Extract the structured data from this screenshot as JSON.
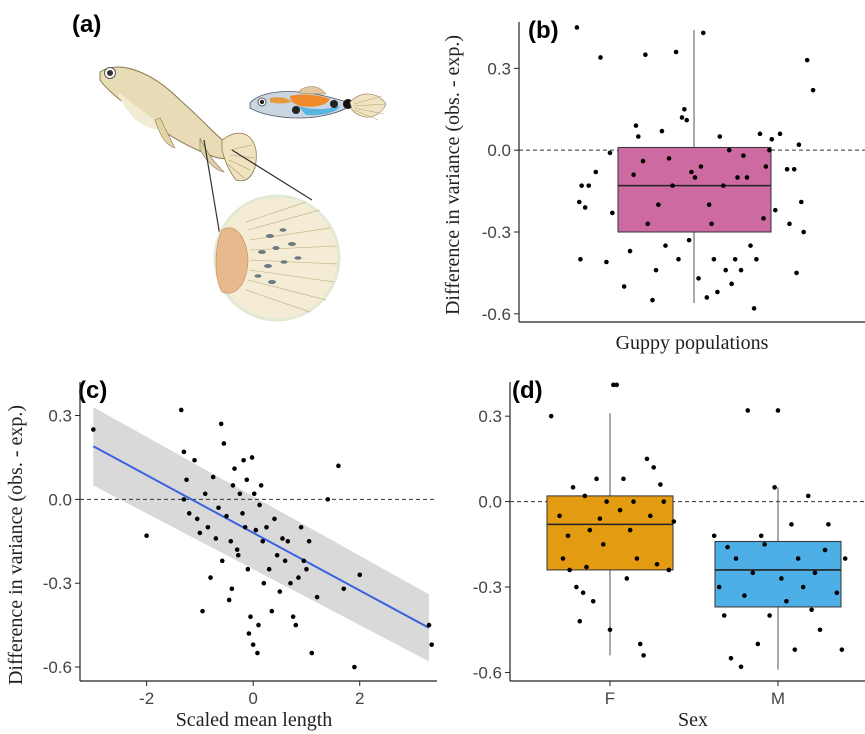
{
  "panel_labels": {
    "a": "(a)",
    "b": "(b)",
    "c": "(c)",
    "d": "(d)"
  },
  "illustration": {
    "subjects": [
      "female-guppy-icon",
      "male-guppy-icon",
      "tail-fin-parasite-icon"
    ]
  },
  "colors": {
    "box_b": "#cc6aa1",
    "box_F": "#e39b12",
    "box_M": "#4eaee6",
    "regression": "#3a62e0",
    "ci_band": "#d9d9d9"
  },
  "chart_data": [
    {
      "type": "box",
      "panel": "(b)",
      "xlabel": "Guppy populations",
      "ylabel": "Difference in variance (obs. - exp.)",
      "ylim": [
        -0.63,
        0.47
      ],
      "yticks": [
        -0.6,
        -0.3,
        0.0,
        0.3
      ],
      "ytick_labels": [
        "-0.6",
        "-0.3",
        "0.0",
        "0.3"
      ],
      "reference_line": 0.0,
      "grid": false,
      "box": {
        "min": -0.56,
        "q1": -0.3,
        "median": -0.13,
        "q3": 0.01,
        "max": 0.44
      },
      "points": [
        [
          -1.0,
          0.45
        ],
        [
          -0.8,
          0.34
        ],
        [
          -0.75,
          -0.41
        ],
        [
          -0.97,
          -0.4
        ],
        [
          -0.96,
          -0.13
        ],
        [
          -0.9,
          -0.13
        ],
        [
          -0.98,
          -0.19
        ],
        [
          -0.93,
          -0.21
        ],
        [
          -0.7,
          -0.23
        ],
        [
          -0.72,
          -0.01
        ],
        [
          -0.84,
          -0.08
        ],
        [
          -0.6,
          -0.5
        ],
        [
          -0.55,
          -0.37
        ],
        [
          -0.52,
          -0.09
        ],
        [
          -0.5,
          0.09
        ],
        [
          -0.48,
          0.05
        ],
        [
          -0.44,
          -0.04
        ],
        [
          -0.42,
          0.35
        ],
        [
          -0.4,
          -0.27
        ],
        [
          -0.36,
          -0.55
        ],
        [
          -0.33,
          -0.44
        ],
        [
          -0.31,
          -0.2
        ],
        [
          -0.28,
          0.07
        ],
        [
          -0.25,
          -0.35
        ],
        [
          -0.22,
          -0.03
        ],
        [
          -0.19,
          -0.13
        ],
        [
          -0.16,
          0.36
        ],
        [
          -0.14,
          -0.4
        ],
        [
          -0.11,
          0.12
        ],
        [
          -0.09,
          0.15
        ],
        [
          -0.07,
          0.11
        ],
        [
          -0.05,
          -0.33
        ],
        [
          -0.03,
          -0.08
        ],
        [
          0.0,
          -0.1
        ],
        [
          0.03,
          -0.47
        ],
        [
          0.05,
          -0.06
        ],
        [
          0.07,
          0.43
        ],
        [
          0.1,
          -0.54
        ],
        [
          0.12,
          -0.2
        ],
        [
          0.14,
          -0.27
        ],
        [
          0.16,
          -0.4
        ],
        [
          0.19,
          -0.52
        ],
        [
          0.21,
          0.05
        ],
        [
          0.24,
          -0.13
        ],
        [
          0.26,
          -0.44
        ],
        [
          0.29,
          0.0
        ],
        [
          0.31,
          -0.49
        ],
        [
          0.34,
          -0.4
        ],
        [
          0.36,
          -0.1
        ],
        [
          0.39,
          -0.44
        ],
        [
          0.41,
          -0.02
        ],
        [
          0.44,
          -0.1
        ],
        [
          0.47,
          -0.35
        ],
        [
          0.5,
          -0.58
        ],
        [
          0.52,
          -0.4
        ],
        [
          0.55,
          0.06
        ],
        [
          0.58,
          -0.25
        ],
        [
          0.6,
          -0.06
        ],
        [
          0.63,
          0.0
        ],
        [
          0.65,
          0.04
        ],
        [
          0.68,
          -0.22
        ],
        [
          0.72,
          0.06
        ],
        [
          0.78,
          -0.07
        ],
        [
          0.8,
          -0.27
        ],
        [
          0.84,
          -0.07
        ],
        [
          0.86,
          -0.45
        ],
        [
          0.88,
          0.02
        ],
        [
          0.9,
          -0.19
        ],
        [
          0.92,
          -0.3
        ],
        [
          0.95,
          0.33
        ],
        [
          1.0,
          0.22
        ]
      ]
    },
    {
      "type": "scatter",
      "panel": "(c)",
      "xlabel": "Scaled mean length",
      "ylabel": "Difference in variance (obs. - exp.)",
      "xlim": [
        -3.25,
        3.45
      ],
      "ylim": [
        -0.65,
        0.42
      ],
      "xticks": [
        -2,
        0,
        2
      ],
      "xtick_labels": [
        "-2",
        "0",
        "2"
      ],
      "yticks": [
        -0.6,
        -0.3,
        0.0,
        0.3
      ],
      "ytick_labels": [
        "-0.6",
        "-0.3",
        "0.0",
        "0.3"
      ],
      "reference_line": 0.0,
      "grid": false,
      "regression": {
        "x": [
          -3.0,
          3.3
        ],
        "y": [
          0.19,
          -0.46
        ],
        "ci_low": [
          0.05,
          -0.58
        ],
        "ci_high": [
          0.33,
          -0.34
        ]
      },
      "points": [
        [
          -3.0,
          0.25
        ],
        [
          -2.0,
          -0.13
        ],
        [
          -1.3,
          0.0
        ],
        [
          -1.2,
          -0.05
        ],
        [
          -1.35,
          0.32
        ],
        [
          -1.3,
          0.17
        ],
        [
          -1.25,
          0.07
        ],
        [
          -1.1,
          0.14
        ],
        [
          -1.05,
          -0.07
        ],
        [
          -1.0,
          -0.12
        ],
        [
          -0.95,
          -0.4
        ],
        [
          -0.9,
          0.02
        ],
        [
          -0.85,
          -0.1
        ],
        [
          -0.8,
          -0.28
        ],
        [
          -0.75,
          0.08
        ],
        [
          -0.7,
          -0.14
        ],
        [
          -0.65,
          -0.03
        ],
        [
          -0.6,
          0.27
        ],
        [
          -0.58,
          -0.22
        ],
        [
          -0.55,
          0.2
        ],
        [
          -0.5,
          -0.06
        ],
        [
          -0.45,
          -0.36
        ],
        [
          -0.42,
          -0.15
        ],
        [
          -0.4,
          -0.32
        ],
        [
          -0.38,
          0.05
        ],
        [
          -0.35,
          0.11
        ],
        [
          -0.3,
          -0.18
        ],
        [
          -0.28,
          -0.2
        ],
        [
          -0.25,
          0.02
        ],
        [
          -0.2,
          -0.05
        ],
        [
          -0.18,
          0.14
        ],
        [
          -0.15,
          -0.1
        ],
        [
          -0.12,
          0.07
        ],
        [
          -0.1,
          -0.25
        ],
        [
          -0.08,
          -0.48
        ],
        [
          -0.05,
          -0.42
        ],
        [
          -0.02,
          0.15
        ],
        [
          0.0,
          -0.52
        ],
        [
          0.02,
          0.02
        ],
        [
          0.05,
          -0.11
        ],
        [
          0.08,
          -0.55
        ],
        [
          0.1,
          -0.45
        ],
        [
          0.12,
          -0.02
        ],
        [
          0.15,
          0.05
        ],
        [
          0.18,
          -0.15
        ],
        [
          0.2,
          -0.3
        ],
        [
          0.25,
          -0.1
        ],
        [
          0.3,
          -0.25
        ],
        [
          0.35,
          -0.4
        ],
        [
          0.4,
          -0.07
        ],
        [
          0.45,
          -0.2
        ],
        [
          0.5,
          -0.33
        ],
        [
          0.55,
          -0.14
        ],
        [
          0.6,
          -0.22
        ],
        [
          0.65,
          -0.15
        ],
        [
          0.7,
          -0.3
        ],
        [
          0.75,
          -0.42
        ],
        [
          0.8,
          -0.45
        ],
        [
          0.85,
          -0.28
        ],
        [
          0.9,
          -0.1
        ],
        [
          0.95,
          -0.22
        ],
        [
          1.0,
          -0.25
        ],
        [
          1.05,
          -0.15
        ],
        [
          1.1,
          -0.55
        ],
        [
          1.2,
          -0.35
        ],
        [
          1.4,
          0.0
        ],
        [
          1.6,
          0.12
        ],
        [
          1.7,
          -0.32
        ],
        [
          1.9,
          -0.6
        ],
        [
          2.0,
          -0.27
        ],
        [
          3.3,
          -0.45
        ],
        [
          3.35,
          -0.52
        ]
      ]
    },
    {
      "type": "box",
      "panel": "(d)",
      "xlabel": "Sex",
      "ylabel": "",
      "ylim": [
        -0.63,
        0.42
      ],
      "categories": [
        "F",
        "M"
      ],
      "yticks": [
        -0.6,
        -0.3,
        0.0,
        0.3
      ],
      "ytick_labels": [
        "-0.6",
        "-0.3",
        "0.0",
        "0.3"
      ],
      "reference_line": 0.0,
      "grid": false,
      "boxes": [
        {
          "name": "F",
          "min": -0.54,
          "q1": -0.24,
          "median": -0.08,
          "q3": 0.02,
          "max": 0.31
        },
        {
          "name": "M",
          "min": -0.59,
          "q1": -0.37,
          "median": -0.24,
          "q3": -0.14,
          "max": 0.05
        }
      ],
      "points": [
        [
          -0.35,
          0.3
        ],
        [
          -0.3,
          -0.05
        ],
        [
          -0.28,
          -0.2
        ],
        [
          -0.25,
          -0.12
        ],
        [
          -0.22,
          0.05
        ],
        [
          -0.2,
          -0.3
        ],
        [
          -0.18,
          -0.42
        ],
        [
          -0.15,
          0.02
        ],
        [
          -0.12,
          -0.1
        ],
        [
          -0.1,
          -0.35
        ],
        [
          -0.08,
          0.08
        ],
        [
          -0.06,
          -0.06
        ],
        [
          -0.04,
          -0.15
        ],
        [
          -0.02,
          0.0
        ],
        [
          0.0,
          -0.45
        ],
        [
          0.02,
          0.41
        ],
        [
          0.04,
          0.41
        ],
        [
          0.06,
          -0.03
        ],
        [
          0.08,
          0.08
        ],
        [
          0.1,
          -0.27
        ],
        [
          0.12,
          -0.1
        ],
        [
          0.14,
          0.0
        ],
        [
          0.16,
          -0.2
        ],
        [
          0.18,
          -0.5
        ],
        [
          0.2,
          -0.54
        ],
        [
          0.22,
          0.15
        ],
        [
          0.24,
          -0.05
        ],
        [
          0.26,
          0.12
        ],
        [
          0.28,
          -0.22
        ],
        [
          0.3,
          0.06
        ],
        [
          0.32,
          0.0
        ],
        [
          0.35,
          -0.24
        ],
        [
          0.38,
          -0.07
        ],
        [
          -0.14,
          -0.23
        ],
        [
          -0.24,
          -0.24
        ],
        [
          -0.16,
          -0.32
        ],
        [
          0.62,
          -0.12
        ],
        [
          0.65,
          -0.3
        ],
        [
          0.68,
          -0.4
        ],
        [
          0.7,
          -0.16
        ],
        [
          0.72,
          -0.55
        ],
        [
          0.75,
          -0.2
        ],
        [
          0.78,
          -0.58
        ],
        [
          0.8,
          -0.33
        ],
        [
          0.82,
          0.32
        ],
        [
          0.85,
          -0.25
        ],
        [
          0.88,
          -0.5
        ],
        [
          0.9,
          -0.12
        ],
        [
          0.92,
          -0.15
        ],
        [
          0.95,
          -0.4
        ],
        [
          0.98,
          0.05
        ],
        [
          1.0,
          0.32
        ],
        [
          1.02,
          -0.27
        ],
        [
          1.05,
          -0.35
        ],
        [
          1.08,
          -0.08
        ],
        [
          1.1,
          -0.52
        ],
        [
          1.12,
          -0.2
        ],
        [
          1.15,
          -0.3
        ],
        [
          1.18,
          0.02
        ],
        [
          1.2,
          -0.38
        ],
        [
          1.22,
          -0.25
        ],
        [
          1.25,
          -0.45
        ],
        [
          1.28,
          -0.17
        ],
        [
          1.3,
          -0.08
        ],
        [
          1.35,
          -0.32
        ],
        [
          1.38,
          -0.52
        ],
        [
          1.4,
          -0.2
        ]
      ]
    }
  ]
}
